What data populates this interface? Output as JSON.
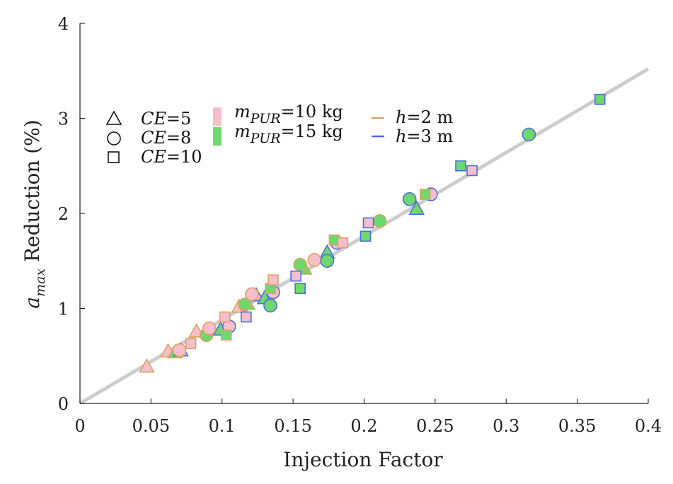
{
  "chart_data": {
    "type": "scatter",
    "xlabel": "Injection Factor",
    "ylabel": {
      "main": "a",
      "sub": "max",
      "rest": " Reduction (%)"
    },
    "xlim": [
      0,
      0.4
    ],
    "ylim": [
      0,
      4
    ],
    "x_ticks": [
      "0",
      "0.05",
      "0.1",
      "0.15",
      "0.2",
      "0.25",
      "0.3",
      "0.35",
      "0.4"
    ],
    "y_ticks": [
      "0",
      "1",
      "2",
      "3",
      "4"
    ],
    "fit_line": {
      "x": [
        0,
        0.4
      ],
      "y": [
        0,
        3.52
      ],
      "color": "#cccccc"
    },
    "legend": {
      "shapes": [
        {
          "shape": "triangle",
          "italic": "CE",
          "rest": "=5"
        },
        {
          "shape": "circle",
          "italic": "CE",
          "rest": "=8"
        },
        {
          "shape": "square",
          "italic": "CE",
          "rest": "=10"
        }
      ],
      "fills": [
        {
          "color": "#f7bfcc",
          "italic": "m",
          "sub": "PUR",
          "rest": "=10 kg"
        },
        {
          "color": "#6ed86e",
          "italic": "m",
          "sub": "PUR",
          "rest": "=15 kg"
        }
      ],
      "edges": [
        {
          "color": "#e3a05f",
          "italic": "h",
          "rest": "=2 m"
        },
        {
          "color": "#4a6ee0",
          "italic": "h",
          "rest": "=3 m"
        }
      ]
    },
    "colors": {
      "pink": "#f7bfcc",
      "green": "#6ed86e",
      "orange": "#e3a05f",
      "blue": "#4a6ee0"
    },
    "points": [
      {
        "x": 0.047,
        "y": 0.39,
        "shape": "triangle",
        "fill": "pink",
        "edge": "orange"
      },
      {
        "x": 0.062,
        "y": 0.55,
        "shape": "triangle",
        "fill": "pink",
        "edge": "orange"
      },
      {
        "x": 0.067,
        "y": 0.54,
        "shape": "triangle",
        "fill": "green",
        "edge": "orange"
      },
      {
        "x": 0.071,
        "y": 0.56,
        "shape": "triangle",
        "fill": "pink",
        "edge": "blue"
      },
      {
        "x": 0.082,
        "y": 0.76,
        "shape": "triangle",
        "fill": "pink",
        "edge": "orange"
      },
      {
        "x": 0.099,
        "y": 0.78,
        "shape": "triangle",
        "fill": "green",
        "edge": "blue"
      },
      {
        "x": 0.112,
        "y": 1.02,
        "shape": "triangle",
        "fill": "pink",
        "edge": "orange"
      },
      {
        "x": 0.118,
        "y": 1.05,
        "shape": "triangle",
        "fill": "green",
        "edge": "orange"
      },
      {
        "x": 0.124,
        "y": 1.14,
        "shape": "triangle",
        "fill": "pink",
        "edge": "blue"
      },
      {
        "x": 0.13,
        "y": 1.11,
        "shape": "triangle",
        "fill": "green",
        "edge": "blue"
      },
      {
        "x": 0.158,
        "y": 1.42,
        "shape": "triangle",
        "fill": "green",
        "edge": "orange"
      },
      {
        "x": 0.174,
        "y": 1.59,
        "shape": "triangle",
        "fill": "green",
        "edge": "blue"
      },
      {
        "x": 0.237,
        "y": 2.05,
        "shape": "triangle",
        "fill": "green",
        "edge": "blue"
      },
      {
        "x": 0.07,
        "y": 0.56,
        "shape": "circle",
        "fill": "pink",
        "edge": "orange"
      },
      {
        "x": 0.089,
        "y": 0.72,
        "shape": "circle",
        "fill": "green",
        "edge": "orange"
      },
      {
        "x": 0.091,
        "y": 0.79,
        "shape": "circle",
        "fill": "pink",
        "edge": "orange"
      },
      {
        "x": 0.105,
        "y": 0.81,
        "shape": "circle",
        "fill": "pink",
        "edge": "blue"
      },
      {
        "x": 0.116,
        "y": 1.04,
        "shape": "circle",
        "fill": "green",
        "edge": "orange"
      },
      {
        "x": 0.121,
        "y": 1.15,
        "shape": "circle",
        "fill": "pink",
        "edge": "orange"
      },
      {
        "x": 0.134,
        "y": 1.03,
        "shape": "circle",
        "fill": "green",
        "edge": "blue"
      },
      {
        "x": 0.136,
        "y": 1.17,
        "shape": "circle",
        "fill": "pink",
        "edge": "blue"
      },
      {
        "x": 0.155,
        "y": 1.46,
        "shape": "circle",
        "fill": "green",
        "edge": "orange"
      },
      {
        "x": 0.165,
        "y": 1.51,
        "shape": "circle",
        "fill": "pink",
        "edge": "orange"
      },
      {
        "x": 0.174,
        "y": 1.5,
        "shape": "circle",
        "fill": "green",
        "edge": "blue"
      },
      {
        "x": 0.181,
        "y": 1.69,
        "shape": "circle",
        "fill": "pink",
        "edge": "blue"
      },
      {
        "x": 0.211,
        "y": 1.92,
        "shape": "circle",
        "fill": "green",
        "edge": "orange"
      },
      {
        "x": 0.232,
        "y": 2.15,
        "shape": "circle",
        "fill": "green",
        "edge": "blue"
      },
      {
        "x": 0.247,
        "y": 2.2,
        "shape": "circle",
        "fill": "pink",
        "edge": "blue"
      },
      {
        "x": 0.316,
        "y": 2.83,
        "shape": "circle",
        "fill": "green",
        "edge": "blue"
      },
      {
        "x": 0.078,
        "y": 0.63,
        "shape": "square",
        "fill": "pink",
        "edge": "orange"
      },
      {
        "x": 0.102,
        "y": 0.91,
        "shape": "square",
        "fill": "pink",
        "edge": "orange"
      },
      {
        "x": 0.103,
        "y": 0.72,
        "shape": "square",
        "fill": "green",
        "edge": "orange"
      },
      {
        "x": 0.117,
        "y": 0.91,
        "shape": "square",
        "fill": "pink",
        "edge": "blue"
      },
      {
        "x": 0.134,
        "y": 1.21,
        "shape": "square",
        "fill": "green",
        "edge": "orange"
      },
      {
        "x": 0.136,
        "y": 1.3,
        "shape": "square",
        "fill": "pink",
        "edge": "orange"
      },
      {
        "x": 0.152,
        "y": 1.34,
        "shape": "square",
        "fill": "pink",
        "edge": "blue"
      },
      {
        "x": 0.155,
        "y": 1.21,
        "shape": "square",
        "fill": "green",
        "edge": "blue"
      },
      {
        "x": 0.179,
        "y": 1.72,
        "shape": "square",
        "fill": "green",
        "edge": "orange"
      },
      {
        "x": 0.185,
        "y": 1.69,
        "shape": "square",
        "fill": "pink",
        "edge": "orange"
      },
      {
        "x": 0.201,
        "y": 1.76,
        "shape": "square",
        "fill": "green",
        "edge": "blue"
      },
      {
        "x": 0.203,
        "y": 1.9,
        "shape": "square",
        "fill": "pink",
        "edge": "blue"
      },
      {
        "x": 0.243,
        "y": 2.2,
        "shape": "square",
        "fill": "green",
        "edge": "orange"
      },
      {
        "x": 0.268,
        "y": 2.5,
        "shape": "square",
        "fill": "green",
        "edge": "blue"
      },
      {
        "x": 0.276,
        "y": 2.45,
        "shape": "square",
        "fill": "pink",
        "edge": "blue"
      },
      {
        "x": 0.366,
        "y": 3.2,
        "shape": "square",
        "fill": "green",
        "edge": "blue"
      }
    ]
  }
}
